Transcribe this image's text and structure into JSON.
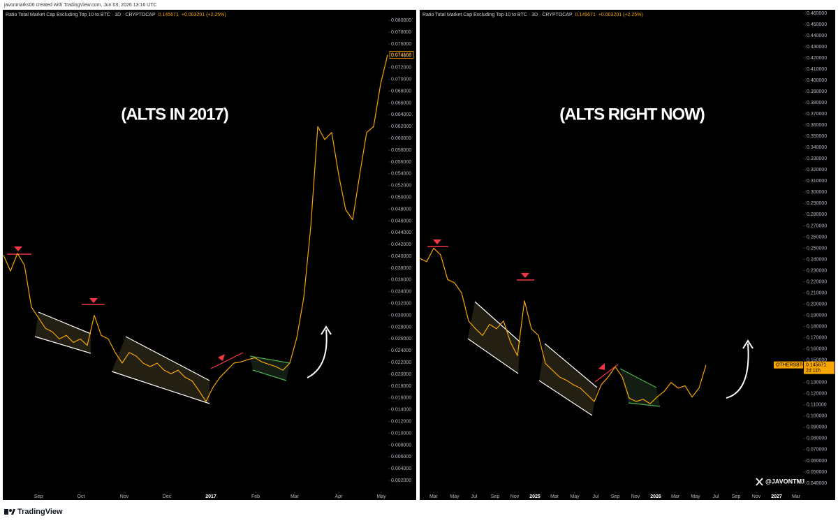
{
  "header": {
    "text": "javonmarks00 created with TradingView.com, Jun 03, 2026 13:16 UTC"
  },
  "footer": {
    "brand": "TradingView"
  },
  "chart_data": [
    {
      "type": "line",
      "title": "Ratio Total Market Cap Excluding Top 10 to BTC · 1D · CRYPTOCAP",
      "price": "0.145671",
      "change": "+0.003201 (+2.25%)",
      "annotation": "(ALTS IN 2017)",
      "color": "#f7a600",
      "values": [
        0.0402,
        0.0375,
        0.0405,
        0.0385,
        0.0314,
        0.0296,
        0.0278,
        0.0272,
        0.026,
        0.0266,
        0.0254,
        0.026,
        0.0249,
        0.03,
        0.0266,
        0.026,
        0.0237,
        0.0219,
        0.0237,
        0.0231,
        0.0219,
        0.0213,
        0.0219,
        0.0207,
        0.0201,
        0.0207,
        0.0195,
        0.0189,
        0.0172,
        0.0154,
        0.0178,
        0.0195,
        0.0207,
        0.0219,
        0.0221,
        0.0225,
        0.0228,
        0.0221,
        0.0217,
        0.0213,
        0.0207,
        0.0219,
        0.0262,
        0.033,
        0.045,
        0.062,
        0.0598,
        0.061,
        0.0538,
        0.0479,
        0.0462,
        0.0538,
        0.061,
        0.062,
        0.0692,
        0.074168
      ],
      "xlim": [
        0,
        55.1
      ],
      "xticks": [
        {
          "value": 5,
          "label": "Sep"
        },
        {
          "value": 11.1,
          "label": "Oct"
        },
        {
          "value": 17.3,
          "label": "Nov"
        },
        {
          "value": 23.4,
          "label": "Dec"
        },
        {
          "value": 29.7,
          "label": "2017"
        },
        {
          "value": 36.1,
          "label": "Feb"
        },
        {
          "value": 41.7,
          "label": "Mar"
        },
        {
          "value": 48,
          "label": "Apr"
        },
        {
          "value": 54.1,
          "label": "May"
        }
      ],
      "ylim": [
        -0.0013,
        0.0818
      ],
      "yticks": [
        {
          "value": 0.002,
          "label": "0.002000"
        },
        {
          "value": 0.004,
          "label": "0.004000"
        },
        {
          "value": 0.006,
          "label": "0.006000"
        },
        {
          "value": 0.008,
          "label": "0.008000"
        },
        {
          "value": 0.01,
          "label": "0.010000"
        },
        {
          "value": 0.012,
          "label": "0.012000"
        },
        {
          "value": 0.014,
          "label": "0.014000"
        },
        {
          "value": 0.016,
          "label": "0.016000"
        },
        {
          "value": 0.018,
          "label": "0.018000"
        },
        {
          "value": 0.02,
          "label": "0.020000"
        },
        {
          "value": 0.022,
          "label": "0.022000"
        },
        {
          "value": 0.024,
          "label": "0.024000"
        },
        {
          "value": 0.026,
          "label": "0.026000"
        },
        {
          "value": 0.028,
          "label": "0.028000"
        },
        {
          "value": 0.03,
          "label": "0.030000"
        },
        {
          "value": 0.032,
          "label": "0.032000"
        },
        {
          "value": 0.034,
          "label": "0.034000"
        },
        {
          "value": 0.036,
          "label": "0.036000"
        },
        {
          "value": 0.038,
          "label": "0.038000"
        },
        {
          "value": 0.04,
          "label": "0.040000"
        },
        {
          "value": 0.042,
          "label": "0.042000"
        },
        {
          "value": 0.044,
          "label": "0.044000"
        },
        {
          "value": 0.046,
          "label": "0.046000"
        },
        {
          "value": 0.048,
          "label": "0.048000"
        },
        {
          "value": 0.05,
          "label": "0.050000"
        },
        {
          "value": 0.052,
          "label": "0.052000"
        },
        {
          "value": 0.054,
          "label": "0.054000"
        },
        {
          "value": 0.056,
          "label": "0.056000"
        },
        {
          "value": 0.058,
          "label": "0.058000"
        },
        {
          "value": 0.06,
          "label": "0.060000"
        },
        {
          "value": 0.062,
          "label": "0.062000"
        },
        {
          "value": 0.064,
          "label": "0.064000"
        },
        {
          "value": 0.066,
          "label": "0.066000"
        },
        {
          "value": 0.068,
          "label": "0.068000"
        },
        {
          "value": 0.07,
          "label": "0.070000"
        },
        {
          "value": 0.072,
          "label": "0.072000"
        },
        {
          "value": 0.074,
          "label": "0.074000"
        },
        {
          "value": 0.076,
          "label": "0.076000"
        },
        {
          "value": 0.078,
          "label": "0.078000"
        },
        {
          "value": 0.08,
          "label": "0.080000"
        }
      ]
    },
    {
      "type": "line",
      "title": "Ratio Total Market Cap Excluding Top 10 to BTC · 3D · CRYPTOCAP",
      "price": "0.145671",
      "change": "+0.003201 (+2.25%)",
      "annotation": "(ALTS RIGHT NOW)",
      "symbol": "OTHERSBTC",
      "countdown": "2d 11h",
      "watermark": "@JAVONTM1",
      "color": "#f7a600",
      "values": [
        0.241,
        0.238,
        0.25,
        0.244,
        0.222,
        0.219,
        0.21,
        0.185,
        0.178,
        0.172,
        0.182,
        0.178,
        0.185,
        0.166,
        0.154,
        0.203,
        0.178,
        0.172,
        0.147,
        0.141,
        0.135,
        0.132,
        0.128,
        0.125,
        0.119,
        0.113,
        0.128,
        0.135,
        0.144,
        0.135,
        0.116,
        0.113,
        0.115,
        0.111,
        0.117,
        0.122,
        0.13,
        0.125,
        0.127,
        0.117,
        0.125,
        0.145671
      ],
      "xlim": [
        0,
        54.9
      ],
      "xticks": [
        {
          "value": 2,
          "label": "Mar"
        },
        {
          "value": 5,
          "label": "May"
        },
        {
          "value": 7.8,
          "label": "Jul"
        },
        {
          "value": 10.8,
          "label": "Sep"
        },
        {
          "value": 13.6,
          "label": "Nov"
        },
        {
          "value": 16.5,
          "label": "2025"
        },
        {
          "value": 19.3,
          "label": "Mar"
        },
        {
          "value": 22.2,
          "label": "May"
        },
        {
          "value": 25.2,
          "label": "Jul"
        },
        {
          "value": 28,
          "label": "Sep"
        },
        {
          "value": 30.9,
          "label": "Nov"
        },
        {
          "value": 33.8,
          "label": "2026"
        },
        {
          "value": 36.6,
          "label": "Mar"
        },
        {
          "value": 39.5,
          "label": "May"
        },
        {
          "value": 42.4,
          "label": "Jul"
        },
        {
          "value": 45.3,
          "label": "Sep"
        },
        {
          "value": 48.2,
          "label": "Nov"
        },
        {
          "value": 51.1,
          "label": "2027"
        },
        {
          "value": 53.9,
          "label": "Mar"
        }
      ],
      "ylim": [
        0.025,
        0.4631
      ],
      "yticks": [
        {
          "value": 0.04,
          "label": "0.040000"
        },
        {
          "value": 0.05,
          "label": "0.050000"
        },
        {
          "value": 0.06,
          "label": "0.060000"
        },
        {
          "value": 0.07,
          "label": "0.070000"
        },
        {
          "value": 0.08,
          "label": "0.080000"
        },
        {
          "value": 0.09,
          "label": "0.090000"
        },
        {
          "value": 0.1,
          "label": "0.100000"
        },
        {
          "value": 0.11,
          "label": "0.110000"
        },
        {
          "value": 0.12,
          "label": "0.120000"
        },
        {
          "value": 0.13,
          "label": "0.130000"
        },
        {
          "value": 0.14,
          "label": "0.140000"
        },
        {
          "value": 0.15,
          "label": "0.150000"
        },
        {
          "value": 0.16,
          "label": "0.160000"
        },
        {
          "value": 0.17,
          "label": "0.170000"
        },
        {
          "value": 0.18,
          "label": "0.180000"
        },
        {
          "value": 0.19,
          "label": "0.190000"
        },
        {
          "value": 0.2,
          "label": "0.200000"
        },
        {
          "value": 0.21,
          "label": "0.210000"
        },
        {
          "value": 0.22,
          "label": "0.220000"
        },
        {
          "value": 0.23,
          "label": "0.230000"
        },
        {
          "value": 0.24,
          "label": "0.240000"
        },
        {
          "value": 0.25,
          "label": "0.250000"
        },
        {
          "value": 0.26,
          "label": "0.260000"
        },
        {
          "value": 0.27,
          "label": "0.270000"
        },
        {
          "value": 0.28,
          "label": "0.280000"
        },
        {
          "value": 0.29,
          "label": "0.290000"
        },
        {
          "value": 0.3,
          "label": "0.300000"
        },
        {
          "value": 0.31,
          "label": "0.310000"
        },
        {
          "value": 0.32,
          "label": "0.320000"
        },
        {
          "value": 0.33,
          "label": "0.330000"
        },
        {
          "value": 0.34,
          "label": "0.340000"
        },
        {
          "value": 0.35,
          "label": "0.350000"
        },
        {
          "value": 0.36,
          "label": "0.360000"
        },
        {
          "value": 0.37,
          "label": "0.370000"
        },
        {
          "value": 0.38,
          "label": "0.380000"
        },
        {
          "value": 0.39,
          "label": "0.390000"
        },
        {
          "value": 0.4,
          "label": "0.400000"
        },
        {
          "value": 0.41,
          "label": "0.410000"
        },
        {
          "value": 0.42,
          "label": "0.420000"
        },
        {
          "value": 0.43,
          "label": "0.430000"
        },
        {
          "value": 0.44,
          "label": "0.440000"
        },
        {
          "value": 0.45,
          "label": "0.450000"
        },
        {
          "value": 0.46,
          "label": "0.460000"
        }
      ]
    }
  ]
}
